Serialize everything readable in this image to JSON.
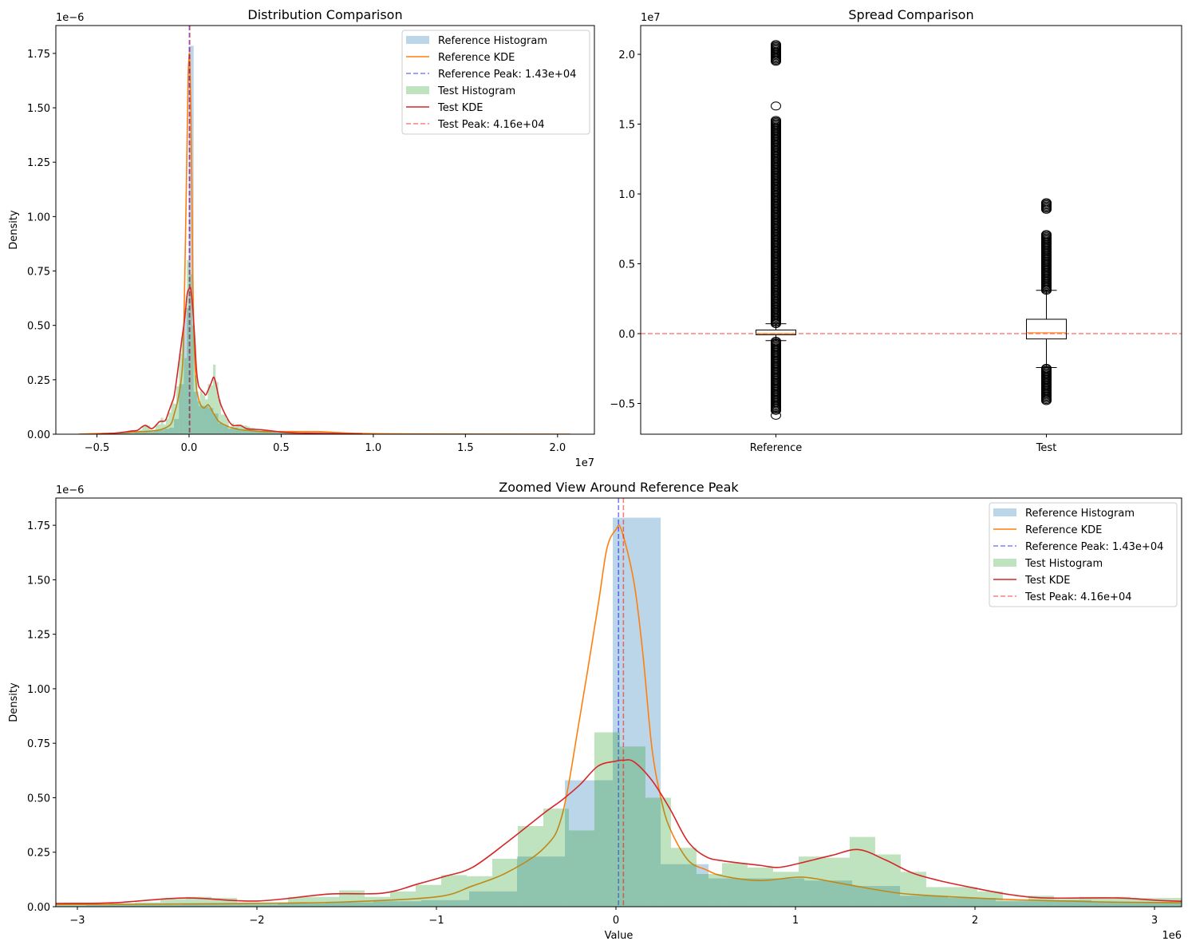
{
  "chart_data": [
    {
      "type": "histogram+kde",
      "title": "Distribution Comparison",
      "xlabel": "",
      "ylabel": "Density",
      "x_offset_label": "1e7",
      "y_offset_label": "1e−6",
      "xlim": [
        -0.723,
        2.2
      ],
      "ylim": [
        0,
        1.878
      ],
      "grid": false,
      "xticks": [
        {
          "v": -0.5,
          "l": "−0.5"
        },
        {
          "v": 0.0,
          "l": "0.0"
        },
        {
          "v": 0.5,
          "l": "0.5"
        },
        {
          "v": 1.0,
          "l": "1.0"
        },
        {
          "v": 1.5,
          "l": "1.5"
        },
        {
          "v": 2.0,
          "l": "2.0"
        }
      ],
      "yticks": [
        {
          "v": 0,
          "l": "0.00"
        },
        {
          "v": 0.25,
          "l": "0.25"
        },
        {
          "v": 0.5,
          "l": "0.50"
        },
        {
          "v": 0.75,
          "l": "0.75"
        },
        {
          "v": 1.0,
          "l": "1.00"
        },
        {
          "v": 1.25,
          "l": "1.25"
        },
        {
          "v": 1.5,
          "l": "1.50"
        },
        {
          "v": 1.75,
          "l": "1.75"
        }
      ],
      "legend": {
        "position": "upper right",
        "entries": [
          {
            "label": "Reference Histogram",
            "color": "#1f77b4",
            "style": "patch"
          },
          {
            "label": "Reference KDE",
            "color": "#ff7f0e",
            "style": "line"
          },
          {
            "label": "Reference Peak: 1.43e+04",
            "color": "#0000ff",
            "style": "dashed"
          },
          {
            "label": "Test Histogram",
            "color": "#2ca02c",
            "style": "patch"
          },
          {
            "label": "Test KDE",
            "color": "#d62728",
            "style": "line"
          },
          {
            "label": "Test Peak: 4.16e+04",
            "color": "#ff0000",
            "style": "dashed"
          }
        ]
      },
      "series": {
        "x_units": "1e6",
        "y_units": "1e-6",
        "reference_histogram": {
          "bin_start": -5.885,
          "bin_width": 0.2667,
          "values": [
            0.002,
            0.002,
            0.003,
            0.003,
            0.004,
            0.004,
            0.005,
            0.005,
            0.006,
            0.006,
            0.005,
            0.008,
            0.008,
            0.01,
            0.01,
            0.015,
            0.02,
            0.025,
            0.03,
            0.07,
            0.23,
            0.58,
            1.785,
            0.195,
            0.13,
            0.13,
            0.12,
            0.095,
            0.05,
            0.04,
            0.025,
            0.03,
            0.02,
            0.02,
            0.018,
            0.015,
            0.014,
            0.012,
            0.01,
            0.009,
            0.008,
            0.008,
            0.01,
            0.012,
            0.011,
            0.012,
            0.013,
            0.012,
            0.011,
            0.012,
            0.01,
            0.008,
            0.006,
            0.005,
            0.004,
            0.004,
            0.003,
            0.003,
            0.002,
            0.002,
            0.002,
            0.002
          ]
        },
        "reference_kde": {
          "x": [
            -6,
            -5,
            -4,
            -3.12,
            -2.5,
            -2,
            -1.5,
            -1,
            -0.8,
            -0.6,
            -0.4,
            -0.3,
            -0.2,
            -0.1,
            -0.05,
            0,
            0.03,
            0.1,
            0.15,
            0.2,
            0.25,
            0.3,
            0.4,
            0.5,
            0.6,
            0.8,
            1.0,
            1.1,
            1.3,
            1.6,
            2.0,
            2.3,
            2.7,
            3.15,
            4,
            5,
            6,
            7,
            7.5,
            9,
            12,
            20.7
          ],
          "y": [
            0,
            0.003,
            0.005,
            0.01,
            0.012,
            0.015,
            0.022,
            0.045,
            0.095,
            0.16,
            0.27,
            0.42,
            0.875,
            1.38,
            1.645,
            1.73,
            1.73,
            1.49,
            1.16,
            0.73,
            0.5,
            0.36,
            0.215,
            0.17,
            0.14,
            0.12,
            0.135,
            0.13,
            0.1,
            0.06,
            0.04,
            0.03,
            0.022,
            0.018,
            0.012,
            0.012,
            0.012,
            0.012,
            0.01,
            0.004,
            0.001,
            0
          ]
        },
        "reference_peak": 0.0143,
        "test_histogram": {
          "bin_start": -4.955,
          "bin_width": 0.1422,
          "values": [
            0.002,
            0.003,
            0.003,
            0.004,
            0.004,
            0.005,
            0.005,
            0.006,
            0.006,
            0.007,
            0.008,
            0.009,
            0.01,
            0.01,
            0.01,
            0.015,
            0.02,
            0.035,
            0.045,
            0.04,
            0.02,
            0.02,
            0.045,
            0.045,
            0.075,
            0.045,
            0.07,
            0.1,
            0.145,
            0.14,
            0.22,
            0.37,
            0.45,
            0.35,
            0.8,
            0.735,
            0.5,
            0.27,
            0.15,
            0.2,
            0.18,
            0.16,
            0.23,
            0.225,
            0.32,
            0.24,
            0.16,
            0.09,
            0.09,
            0.07,
            0.03,
            0.05,
            0.035,
            0.045,
            0.045,
            0.04,
            0.04,
            0.035,
            0.03,
            0.03,
            0.025,
            0.02,
            0.02,
            0.018,
            0.015,
            0.012,
            0.01,
            0.01,
            0.008,
            0.008,
            0.007,
            0.006,
            0.005,
            0.005,
            0.004,
            0.004,
            0.003,
            0.003,
            0.002,
            0.002
          ]
        },
        "test_kde": {
          "x": [
            -5,
            -4,
            -3.5,
            -3.12,
            -2.8,
            -2.4,
            -2.0,
            -1.6,
            -1.3,
            -1.1,
            -0.95,
            -0.8,
            -0.6,
            -0.4,
            -0.3,
            -0.2,
            -0.1,
            0,
            0.04,
            0.1,
            0.2,
            0.3,
            0.4,
            0.5,
            0.6,
            0.8,
            0.9,
            1.0,
            1.2,
            1.35,
            1.5,
            1.65,
            1.8,
            2.0,
            2.2,
            2.4,
            2.8,
            3.15,
            4,
            5,
            6,
            9.4
          ],
          "y": [
            0,
            0.005,
            0.01,
            0.015,
            0.018,
            0.04,
            0.026,
            0.058,
            0.062,
            0.105,
            0.14,
            0.18,
            0.3,
            0.43,
            0.49,
            0.56,
            0.645,
            0.668,
            0.672,
            0.665,
            0.58,
            0.45,
            0.3,
            0.23,
            0.21,
            0.19,
            0.18,
            0.195,
            0.235,
            0.262,
            0.215,
            0.155,
            0.12,
            0.085,
            0.055,
            0.04,
            0.04,
            0.025,
            0.02,
            0.01,
            0.005,
            0.001
          ]
        },
        "test_peak": 0.0416
      }
    },
    {
      "type": "box",
      "title": "Spread Comparison",
      "y_offset_label": "1e7",
      "xlim": [
        0.5,
        2.5
      ],
      "ylim": [
        -0.72,
        2.206
      ],
      "xticks": [
        {
          "v": 1,
          "l": "Reference"
        },
        {
          "v": 2,
          "l": "Test"
        }
      ],
      "yticks": [
        {
          "v": -0.5,
          "l": "−0.5"
        },
        {
          "v": 0.0,
          "l": "0.0"
        },
        {
          "v": 0.5,
          "l": "0.5"
        },
        {
          "v": 1.0,
          "l": "1.0"
        },
        {
          "v": 1.5,
          "l": "1.5"
        },
        {
          "v": 2.0,
          "l": "2.0"
        }
      ],
      "reference_line": 0.0,
      "boxes": [
        {
          "name": "Reference",
          "q1": -0.008,
          "median": 0.0,
          "q3": 0.026,
          "whisker_low": -0.05,
          "whisker_high": 0.071,
          "outlier_ranges": [
            [
              0.071,
              1.53
            ],
            [
              1.63,
              1.635
            ],
            [
              1.95,
              2.07
            ],
            [
              -0.55,
              -0.05
            ],
            [
              -0.585,
              -0.58
            ]
          ]
        },
        {
          "name": "Test",
          "q1": -0.038,
          "median": 0.006,
          "q3": 0.103,
          "whisker_low": -0.243,
          "whisker_high": 0.31,
          "outlier_ranges": [
            [
              0.31,
              0.71
            ],
            [
              0.89,
              0.94
            ],
            [
              -0.48,
              -0.243
            ]
          ]
        }
      ]
    },
    {
      "type": "histogram+kde",
      "title": "Zoomed View Around Reference Peak",
      "xlabel": "Value",
      "ylabel": "Density",
      "x_offset_label": "1e6",
      "y_offset_label": "1e−6",
      "xlim": [
        -3.12,
        3.151
      ],
      "ylim": [
        0,
        1.875
      ],
      "grid": false,
      "series_source": "chart_data.0.series",
      "xticks": [
        {
          "v": -3,
          "l": "−3"
        },
        {
          "v": -2,
          "l": "−2"
        },
        {
          "v": -1,
          "l": "−1"
        },
        {
          "v": 0,
          "l": "0"
        },
        {
          "v": 1,
          "l": "1"
        },
        {
          "v": 2,
          "l": "2"
        },
        {
          "v": 3,
          "l": "3"
        }
      ],
      "yticks": [
        {
          "v": 0,
          "l": "0.00"
        },
        {
          "v": 0.25,
          "l": "0.25"
        },
        {
          "v": 0.5,
          "l": "0.50"
        },
        {
          "v": 0.75,
          "l": "0.75"
        },
        {
          "v": 1.0,
          "l": "1.00"
        },
        {
          "v": 1.25,
          "l": "1.25"
        },
        {
          "v": 1.5,
          "l": "1.50"
        },
        {
          "v": 1.75,
          "l": "1.75"
        }
      ],
      "legend": {
        "position": "upper right",
        "entries": [
          {
            "label": "Reference Histogram",
            "color": "#1f77b4",
            "style": "patch"
          },
          {
            "label": "Reference KDE",
            "color": "#ff7f0e",
            "style": "line"
          },
          {
            "label": "Reference Peak: 1.43e+04",
            "color": "#0000ff",
            "style": "dashed"
          },
          {
            "label": "Test Histogram",
            "color": "#2ca02c",
            "style": "patch"
          },
          {
            "label": "Test KDE",
            "color": "#d62728",
            "style": "line"
          },
          {
            "label": "Test Peak: 4.16e+04",
            "color": "#ff0000",
            "style": "dashed"
          }
        ]
      }
    }
  ]
}
